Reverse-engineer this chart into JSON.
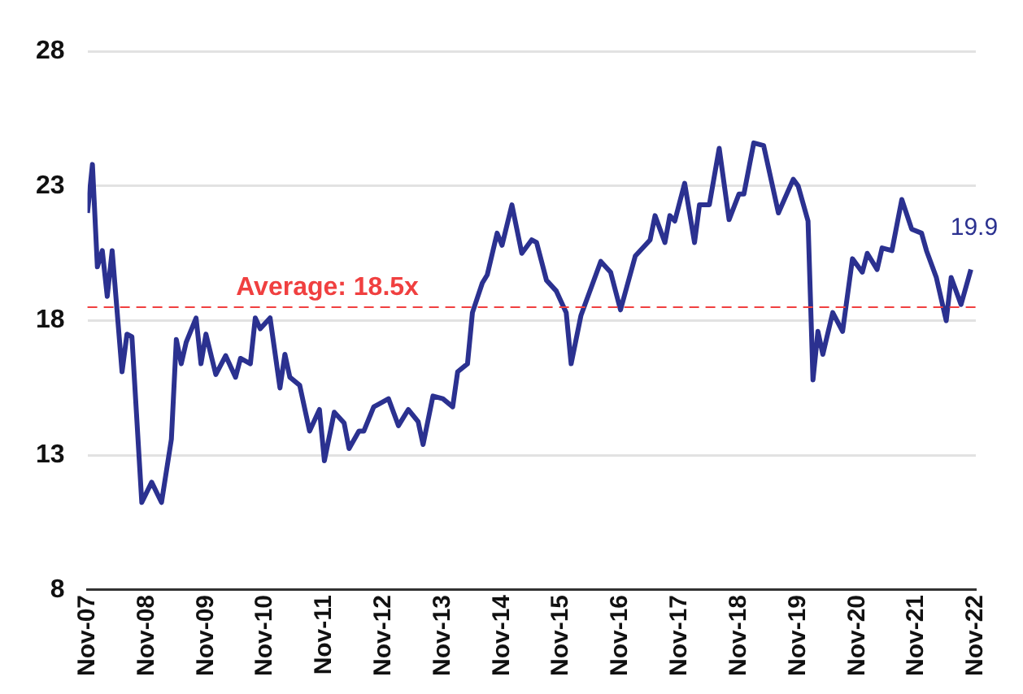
{
  "chart_data": {
    "type": "line",
    "x": [
      "2007-11",
      "2007-12",
      "2008-01",
      "2008-02",
      "2008-03",
      "2008-04",
      "2008-06",
      "2008-07",
      "2008-08",
      "2008-10",
      "2008-12",
      "2009-02",
      "2009-04",
      "2009-05",
      "2009-06",
      "2009-07",
      "2009-09",
      "2009-10",
      "2009-11",
      "2010-01",
      "2010-03",
      "2010-05",
      "2010-06",
      "2010-08",
      "2010-09",
      "2010-10",
      "2010-12",
      "2011-02",
      "2011-03",
      "2011-04",
      "2011-06",
      "2011-08",
      "2011-10",
      "2011-11",
      "2012-01",
      "2012-03",
      "2012-04",
      "2012-06",
      "2012-07",
      "2012-09",
      "2012-10",
      "2012-12",
      "2013-02",
      "2013-04",
      "2013-06",
      "2013-07",
      "2013-09",
      "2013-11",
      "2014-01",
      "2014-02",
      "2014-04",
      "2014-05",
      "2014-07",
      "2014-08",
      "2014-10",
      "2014-11",
      "2015-01",
      "2015-03",
      "2015-05",
      "2015-06",
      "2015-08",
      "2015-10",
      "2015-12",
      "2016-01",
      "2016-03",
      "2016-07",
      "2016-09",
      "2016-11",
      "2017-02",
      "2017-05",
      "2017-06",
      "2017-08",
      "2017-09",
      "2017-10",
      "2017-12",
      "2018-02",
      "2018-03",
      "2018-05",
      "2018-07",
      "2018-09",
      "2018-11",
      "2018-12",
      "2019-02",
      "2019-04",
      "2019-07",
      "2019-10",
      "2019-11",
      "2020-01",
      "2020-02",
      "2020-03",
      "2020-04",
      "2020-06",
      "2020-08",
      "2020-10",
      "2020-12",
      "2021-01",
      "2021-03",
      "2021-04",
      "2021-06",
      "2021-08",
      "2021-10",
      "2021-12",
      "2022-01",
      "2022-03",
      "2022-05",
      "2022-06",
      "2022-08",
      "2022-10"
    ],
    "series": [
      {
        "color": "#2b3190",
        "values": [
          22.0,
          23.8,
          20.0,
          20.6,
          18.9,
          20.6,
          16.1,
          17.5,
          17.4,
          11.25,
          12.0,
          11.25,
          13.6,
          17.3,
          16.4,
          17.2,
          18.1,
          16.4,
          17.5,
          16.0,
          16.7,
          15.9,
          16.6,
          16.4,
          18.1,
          17.7,
          18.1,
          15.5,
          16.75,
          15.9,
          15.6,
          13.9,
          14.7,
          12.8,
          14.6,
          14.2,
          13.25,
          13.9,
          13.9,
          14.8,
          14.9,
          15.1,
          14.1,
          14.7,
          14.25,
          13.4,
          15.2,
          15.1,
          14.8,
          16.1,
          16.4,
          18.3,
          19.4,
          19.7,
          21.25,
          20.8,
          22.3,
          20.5,
          21.0,
          20.9,
          19.5,
          19.1,
          18.3,
          16.4,
          18.2,
          20.2,
          19.8,
          18.4,
          20.4,
          21.0,
          21.9,
          20.9,
          21.9,
          21.7,
          23.1,
          20.9,
          22.3,
          22.3,
          24.4,
          21.75,
          22.7,
          22.7,
          24.6,
          24.5,
          22.0,
          23.25,
          23.0,
          21.7,
          15.8,
          17.6,
          16.75,
          18.3,
          17.6,
          20.3,
          19.8,
          20.5,
          19.9,
          20.7,
          20.6,
          22.5,
          21.4,
          21.25,
          20.6,
          19.6,
          18.0,
          19.6,
          18.6,
          19.9
        ]
      }
    ],
    "xlim": [
      "2007-11",
      "2022-11"
    ],
    "xticks": [
      {
        "value": "2007-11",
        "label": "Nov-07"
      },
      {
        "value": "2008-11",
        "label": "Nov-08"
      },
      {
        "value": "2009-11",
        "label": "Nov-09"
      },
      {
        "value": "2010-11",
        "label": "Nov-10"
      },
      {
        "value": "2011-11",
        "label": "Nov-11"
      },
      {
        "value": "2012-11",
        "label": "Nov-12"
      },
      {
        "value": "2013-11",
        "label": "Nov-13"
      },
      {
        "value": "2014-11",
        "label": "Nov-14"
      },
      {
        "value": "2015-11",
        "label": "Nov-15"
      },
      {
        "value": "2016-11",
        "label": "Nov-16"
      },
      {
        "value": "2017-11",
        "label": "Nov-17"
      },
      {
        "value": "2018-11",
        "label": "Nov-18"
      },
      {
        "value": "2019-11",
        "label": "Nov-19"
      },
      {
        "value": "2020-11",
        "label": "Nov-20"
      },
      {
        "value": "2021-11",
        "label": "Nov-21"
      },
      {
        "value": "2022-11",
        "label": "Nov-22"
      }
    ],
    "ylim": [
      8,
      28
    ],
    "yticks": [
      8,
      13,
      18,
      23,
      28
    ],
    "grid": "y",
    "marker": "none",
    "line_style": "solid",
    "legend": false,
    "ref_lines": [
      {
        "axis": "y",
        "value": 18.5,
        "label": "Average: 18.5x",
        "color": "#f04040",
        "line_style": "dashed"
      }
    ],
    "annotations": [
      {
        "text": "19.9",
        "x": "2022-10",
        "y": 19.9
      }
    ]
  }
}
